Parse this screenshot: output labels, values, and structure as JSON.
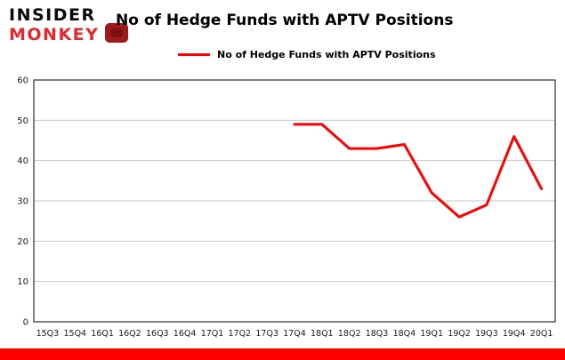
{
  "logo": {
    "line1": "INSIDER",
    "line2": "MONKEY"
  },
  "header": {
    "title": "No of Hedge Funds with APTV Positions"
  },
  "legend": {
    "label": "No of Hedge Funds with APTV Positions"
  },
  "colors": {
    "line": "#fe0000",
    "bottom_bar": "#fe0000",
    "grid": "#c9c9c9",
    "axis": "#000000",
    "logo_red": "#e8272c",
    "badge_red": "#9e191c"
  },
  "chart_data": {
    "type": "line",
    "title": "No of Hedge Funds with APTV Positions",
    "xlabel": "",
    "ylabel": "",
    "categories": [
      "15Q3",
      "15Q4",
      "16Q1",
      "16Q2",
      "16Q3",
      "16Q4",
      "17Q1",
      "17Q2",
      "17Q3",
      "17Q4",
      "18Q1",
      "18Q2",
      "18Q3",
      "18Q4",
      "19Q1",
      "19Q2",
      "19Q3",
      "19Q4",
      "20Q1"
    ],
    "values": [
      null,
      null,
      null,
      null,
      null,
      null,
      null,
      null,
      null,
      49,
      49,
      43,
      43,
      44,
      32,
      26,
      29,
      46,
      33
    ],
    "ylim": [
      0,
      60
    ],
    "yticks": [
      0,
      10,
      20,
      30,
      40,
      50,
      60
    ],
    "grid": "horizontal",
    "legend_position": "top-left",
    "line_color": "#fe0000",
    "grid_color": "#c9c9c9",
    "axis_color": "#000000",
    "axis_label_color": "#1a1a1a"
  }
}
